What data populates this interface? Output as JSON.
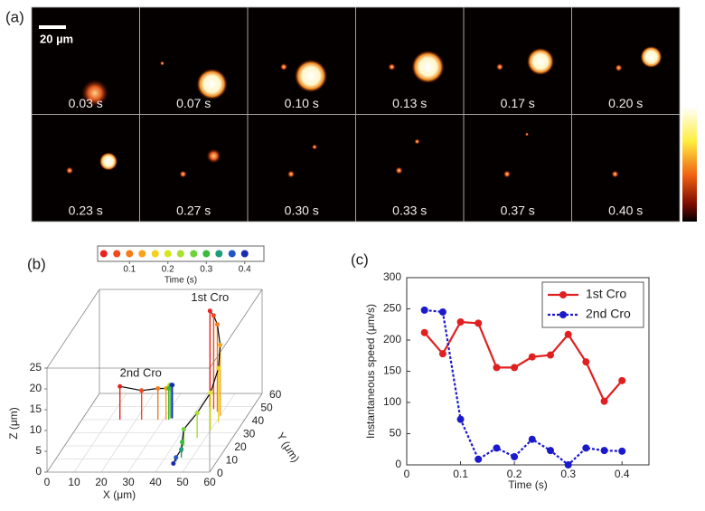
{
  "panel_a": {
    "label": "(a)",
    "scale_bar": "20 µm",
    "frames": [
      "0.03 s",
      "0.07 s",
      "0.10 s",
      "0.13 s",
      "0.17 s",
      "0.20 s",
      "0.23 s",
      "0.27 s",
      "0.30 s",
      "0.33 s",
      "0.37 s",
      "0.40 s"
    ]
  },
  "chart_data": [
    {
      "type": "scatter3d",
      "label": "(b)",
      "xlabel": "X (μm)",
      "ylabel": "Y (μm)",
      "zlabel": "Z (μm)",
      "xlim": [
        0,
        60
      ],
      "ylim": [
        0,
        60
      ],
      "zlim": [
        0,
        25
      ],
      "xticks": [
        0,
        10,
        20,
        30,
        40,
        50,
        60
      ],
      "yticks": [
        0,
        10,
        20,
        30,
        40,
        50,
        60
      ],
      "zticks": [
        0,
        5,
        10,
        15,
        20,
        25
      ],
      "colorbar": {
        "label": "Time (s)",
        "lim": [
          0.017,
          0.45
        ],
        "ticks": [
          0.1,
          0.2,
          0.3,
          0.4
        ],
        "times": [
          0.033,
          0.067,
          0.1,
          0.133,
          0.167,
          0.2,
          0.233,
          0.267,
          0.3,
          0.333,
          0.367,
          0.4
        ],
        "colors": [
          "#e8231f",
          "#f04a1c",
          "#f57a1a",
          "#f7a21b",
          "#f2d21c",
          "#d8e61e",
          "#a8e030",
          "#6fd23a",
          "#3cba3e",
          "#1f9a7a",
          "#1f55c8",
          "#1a2bb0"
        ]
      },
      "series": [
        {
          "name": "1st Cro",
          "x": [
            44,
            46,
            48,
            50,
            51,
            50,
            47,
            44,
            45,
            46,
            45,
            45
          ],
          "y": [
            50,
            48,
            46,
            43,
            38,
            32,
            26,
            20,
            15,
            11,
            8,
            5
          ],
          "z": [
            23,
            22.5,
            21,
            17,
            13,
            9,
            6,
            4,
            2.5,
            2,
            1,
            0.5
          ]
        },
        {
          "name": "2nd Cro",
          "x": [
            14,
            22,
            28,
            31,
            32,
            32,
            32.5,
            32.5,
            32,
            32.5,
            33,
            33
          ],
          "y": [
            40,
            40,
            40,
            40,
            40,
            41,
            41,
            41,
            40,
            41,
            41,
            41
          ],
          "z": [
            8,
            7,
            7.5,
            7.5,
            8,
            8,
            8,
            8,
            7.5,
            8,
            8,
            8
          ]
        }
      ]
    },
    {
      "type": "line",
      "label": "(c)",
      "xlabel": "Time (s)",
      "ylabel": "Instantaneous speed (μm/s)",
      "x": [
        0.033,
        0.067,
        0.1,
        0.133,
        0.167,
        0.2,
        0.233,
        0.267,
        0.3,
        0.333,
        0.367,
        0.4
      ],
      "xlim": [
        0,
        0.45
      ],
      "xticks": [
        0,
        0.1,
        0.2,
        0.3,
        0.4
      ],
      "ylim": [
        0,
        300
      ],
      "yticks": [
        0,
        50,
        100,
        150,
        200,
        250,
        300
      ],
      "legend": "top-right",
      "series": [
        {
          "name": "1st Cro",
          "color": "#e02020",
          "dash": false,
          "values": [
            212,
            178,
            229,
            227,
            156,
            156,
            173,
            176,
            209,
            165,
            102,
            135
          ]
        },
        {
          "name": "2nd Cro",
          "color": "#1a1acc",
          "dash": true,
          "values": [
            248,
            245,
            73,
            9,
            27,
            13,
            41,
            23,
            0,
            27,
            23,
            22
          ]
        }
      ]
    }
  ]
}
